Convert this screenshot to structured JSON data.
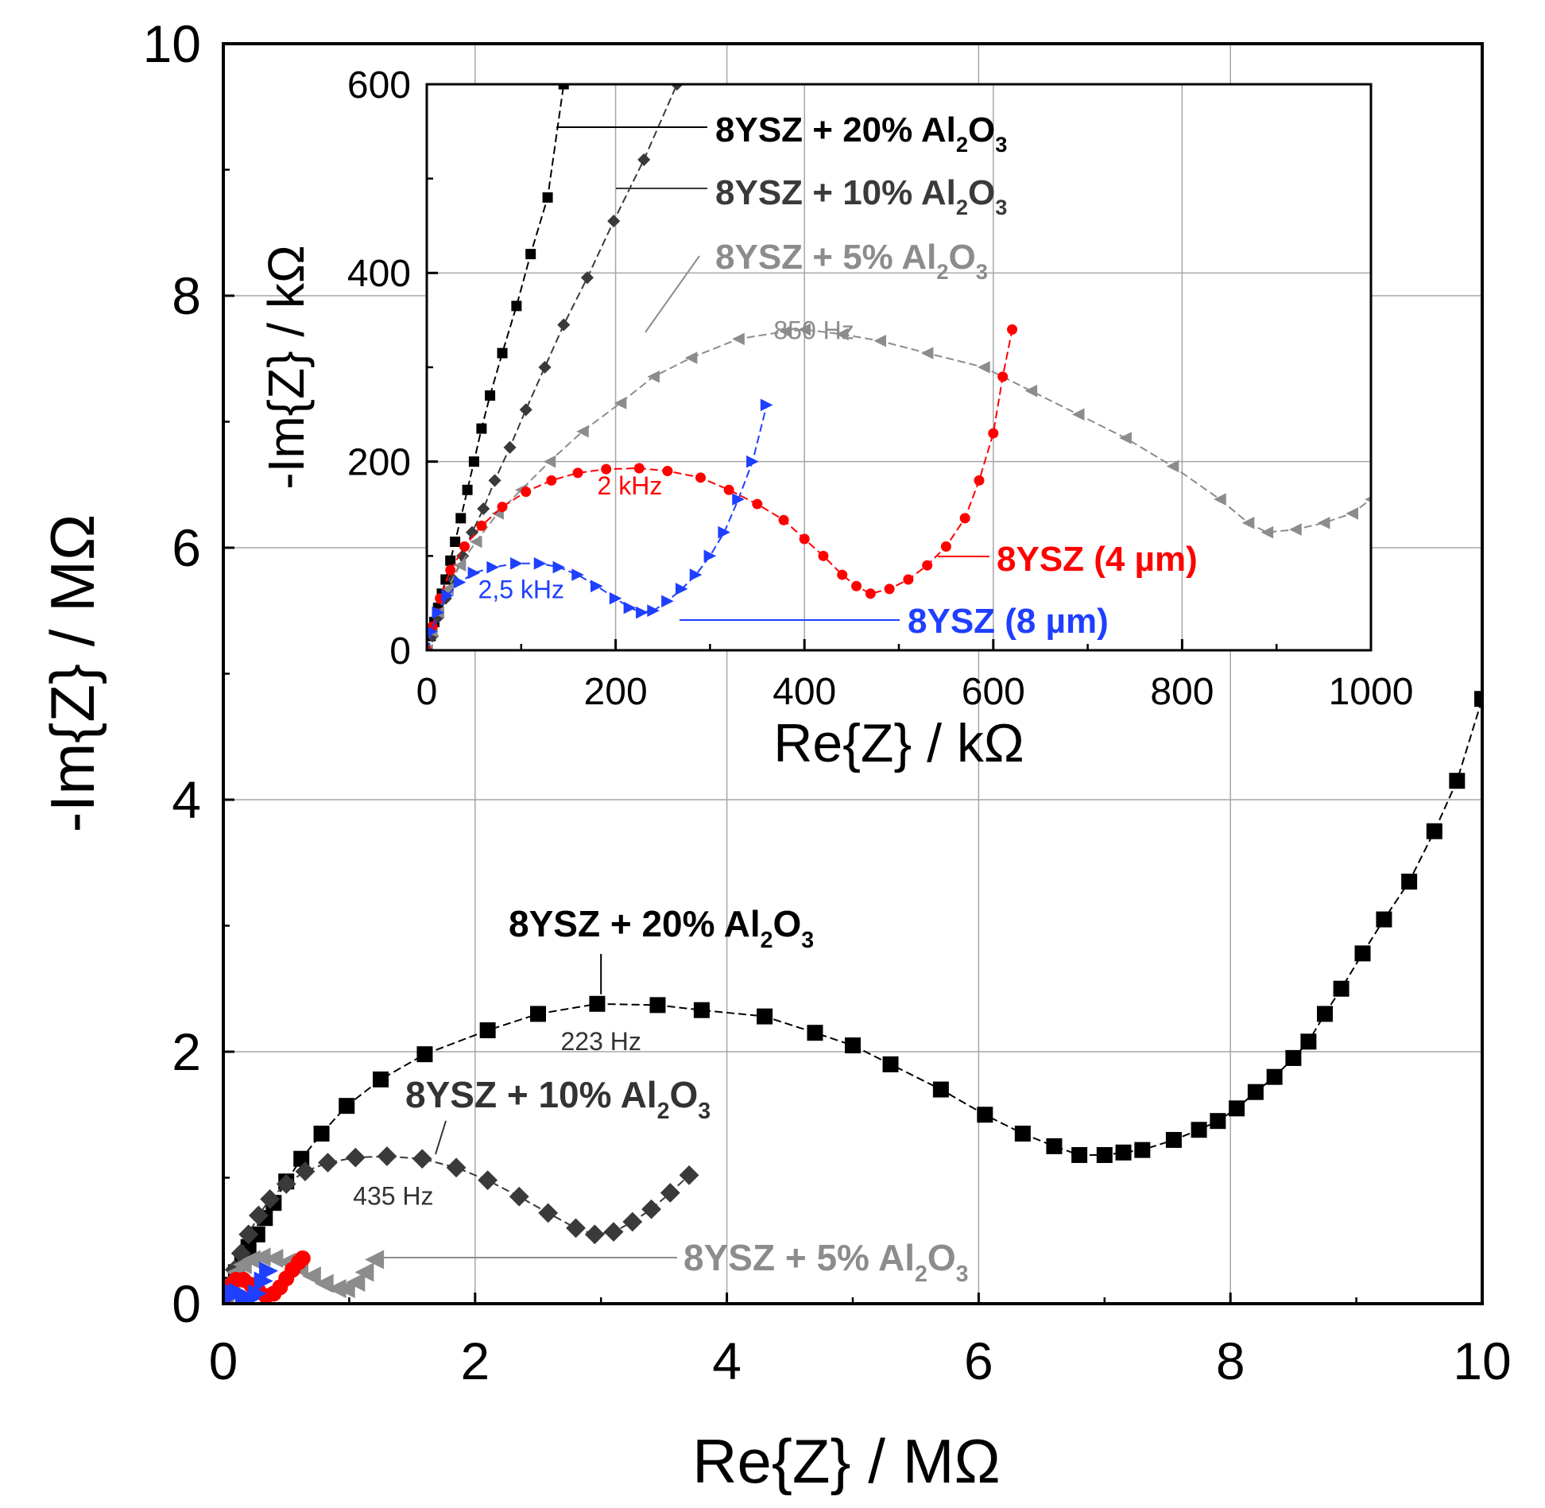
{
  "chart_data": [
    {
      "type": "line",
      "xlabel": "Re{Z} / MΩ",
      "ylabel": "-Im{Z} / MΩ",
      "xlim": [
        0,
        10
      ],
      "ylim": [
        0,
        10
      ],
      "xticks": [
        "0",
        "2",
        "4",
        "6",
        "8",
        "10"
      ],
      "yticks": [
        "0",
        "2",
        "4",
        "6",
        "8",
        "10"
      ],
      "grid": true,
      "series": [
        {
          "name": "8YSZ + 20% Al2O3",
          "color": "#000000",
          "marker": "square",
          "label_main": "8YSZ + 20% Al",
          "label_sub1": "2",
          "label_mid": "O",
          "label_sub2": "3",
          "x": [
            0.02,
            0.06,
            0.1,
            0.15,
            0.2,
            0.27,
            0.33,
            0.4,
            0.5,
            0.62,
            0.78,
            0.98,
            1.25,
            1.6,
            2.1,
            2.5,
            2.97,
            3.45,
            3.8,
            4.3,
            4.7,
            5.0,
            5.3,
            5.7,
            6.05,
            6.35,
            6.6,
            6.8,
            7.0,
            7.15,
            7.3,
            7.55,
            7.75,
            7.9,
            8.05,
            8.2,
            8.35,
            8.5,
            8.62,
            8.75,
            8.88,
            9.05,
            9.22,
            9.42,
            9.62,
            9.8,
            10.0
          ],
          "y": [
            0.05,
            0.15,
            0.25,
            0.35,
            0.45,
            0.55,
            0.68,
            0.8,
            0.97,
            1.15,
            1.35,
            1.57,
            1.78,
            1.98,
            2.17,
            2.3,
            2.38,
            2.37,
            2.33,
            2.28,
            2.15,
            2.05,
            1.9,
            1.7,
            1.5,
            1.35,
            1.25,
            1.18,
            1.18,
            1.2,
            1.22,
            1.3,
            1.38,
            1.45,
            1.55,
            1.68,
            1.8,
            1.95,
            2.08,
            2.3,
            2.5,
            2.78,
            3.05,
            3.35,
            3.75,
            4.15,
            4.8
          ]
        },
        {
          "name": "8YSZ + 10% Al2O3",
          "color": "#3a3a3a",
          "marker": "diamond",
          "label_main": "8YSZ + 10% Al",
          "label_sub1": "2",
          "label_mid": "O",
          "label_sub2": "3",
          "x": [
            0.02,
            0.05,
            0.09,
            0.14,
            0.2,
            0.28,
            0.37,
            0.5,
            0.65,
            0.83,
            1.05,
            1.3,
            1.58,
            1.85,
            2.1,
            2.35,
            2.58,
            2.8,
            2.95,
            3.1,
            3.25,
            3.4,
            3.55,
            3.7
          ],
          "y": [
            0.05,
            0.15,
            0.27,
            0.4,
            0.55,
            0.7,
            0.83,
            0.95,
            1.05,
            1.12,
            1.16,
            1.17,
            1.15,
            1.08,
            0.98,
            0.85,
            0.72,
            0.6,
            0.55,
            0.57,
            0.65,
            0.75,
            0.88,
            1.02
          ]
        },
        {
          "name": "8YSZ + 5% Al2O3",
          "color": "#8c8c8c",
          "marker": "triangle-left",
          "label_main": "8YSZ + 5% Al",
          "label_sub1": "2",
          "label_mid": "O",
          "label_sub2": "3",
          "x": [
            0.01,
            0.03,
            0.06,
            0.1,
            0.15,
            0.22,
            0.3,
            0.4,
            0.5,
            0.6,
            0.7,
            0.8,
            0.9,
            0.97,
            1.05,
            1.12,
            1.2
          ],
          "y": [
            0.03,
            0.1,
            0.18,
            0.25,
            0.31,
            0.35,
            0.37,
            0.36,
            0.33,
            0.28,
            0.22,
            0.16,
            0.12,
            0.12,
            0.17,
            0.25,
            0.35
          ]
        },
        {
          "name": "8YSZ (4 µm)",
          "color": "#ff0000",
          "marker": "circle",
          "x": [
            0.0,
            0.02,
            0.05,
            0.1,
            0.16,
            0.22,
            0.28,
            0.34,
            0.4,
            0.45,
            0.5,
            0.55,
            0.6,
            0.63
          ],
          "y": [
            0.0,
            0.08,
            0.14,
            0.19,
            0.19,
            0.15,
            0.1,
            0.06,
            0.08,
            0.13,
            0.2,
            0.27,
            0.33,
            0.36
          ]
        },
        {
          "name": "8YSZ (8 µm)",
          "color": "#1f3fff",
          "marker": "triangle-right",
          "x": [
            0.0,
            0.03,
            0.07,
            0.12,
            0.17,
            0.22,
            0.27,
            0.32,
            0.36
          ],
          "y": [
            0.0,
            0.05,
            0.09,
            0.09,
            0.06,
            0.04,
            0.08,
            0.18,
            0.26
          ]
        }
      ],
      "annotations": [
        {
          "text": "223 Hz",
          "x": 3.0,
          "y": 2.38
        },
        {
          "text": "435 Hz",
          "x": 1.35,
          "y": 1.15
        }
      ]
    },
    {
      "type": "line",
      "inset": true,
      "xlabel": "Re{Z} / kΩ",
      "ylabel": "-Im{Z} / kΩ",
      "xlim": [
        0,
        1000
      ],
      "ylim": [
        0,
        600
      ],
      "xticks": [
        "0",
        "200",
        "400",
        "600",
        "800",
        "1000"
      ],
      "yticks": [
        "0",
        "200",
        "400",
        "600"
      ],
      "grid": true,
      "series": [
        {
          "name": "8YSZ + 20% Al2O3",
          "color": "#000000",
          "marker": "square",
          "label_main": "8YSZ + 20% Al",
          "label_sub1": "2",
          "label_mid": "O",
          "label_sub2": "3",
          "x": [
            0,
            4,
            8,
            12,
            16,
            20,
            25,
            30,
            36,
            43,
            50,
            58,
            67,
            80,
            95,
            110,
            128,
            145
          ],
          "y": [
            0,
            15,
            30,
            45,
            60,
            75,
            95,
            115,
            140,
            170,
            200,
            235,
            270,
            315,
            365,
            420,
            480,
            600
          ]
        },
        {
          "name": "8YSZ + 10% Al2O3",
          "color": "#3a3a3a",
          "marker": "diamond",
          "label_main": "8YSZ + 10% Al",
          "label_sub1": "2",
          "label_mid": "O",
          "label_sub2": "3",
          "x": [
            0,
            6,
            12,
            20,
            28,
            38,
            48,
            60,
            72,
            88,
            105,
            125,
            145,
            170,
            198,
            230,
            265
          ],
          "y": [
            0,
            15,
            35,
            55,
            75,
            100,
            125,
            150,
            180,
            215,
            255,
            300,
            345,
            395,
            455,
            520,
            600
          ]
        },
        {
          "name": "8YSZ + 5% Al2O3",
          "color": "#8c8c8c",
          "marker": "triangle-left",
          "label_main": "8YSZ + 5% Al",
          "label_sub1": "2",
          "label_mid": "O",
          "label_sub2": "3",
          "x": [
            0,
            5,
            12,
            22,
            35,
            52,
            75,
            100,
            130,
            165,
            205,
            240,
            280,
            330,
            380,
            400,
            440,
            480,
            530,
            590,
            640,
            690,
            740,
            790,
            840,
            870,
            890,
            920,
            950,
            980,
            1000
          ],
          "y": [
            0,
            20,
            40,
            65,
            90,
            115,
            145,
            170,
            200,
            232,
            262,
            290,
            310,
            330,
            338,
            340,
            335,
            328,
            315,
            300,
            275,
            250,
            225,
            195,
            160,
            135,
            125,
            128,
            135,
            145,
            160
          ]
        },
        {
          "name": "8YSZ (4 µm)",
          "color": "#ff0000",
          "marker": "circle",
          "x": [
            0,
            6,
            14,
            25,
            40,
            58,
            80,
            105,
            132,
            160,
            190,
            225,
            255,
            290,
            320,
            350,
            378,
            400,
            420,
            440,
            455,
            470,
            490,
            510,
            530,
            550,
            570,
            585,
            600,
            610,
            620
          ],
          "y": [
            0,
            25,
            55,
            85,
            110,
            132,
            152,
            168,
            180,
            188,
            192,
            193,
            190,
            183,
            170,
            155,
            138,
            118,
            100,
            80,
            68,
            60,
            65,
            75,
            90,
            110,
            140,
            180,
            230,
            290,
            340
          ]
        },
        {
          "name": "8YSZ (8 µm)",
          "color": "#1f3fff",
          "marker": "triangle-right",
          "x": [
            0,
            5,
            12,
            22,
            35,
            50,
            70,
            95,
            120,
            140,
            160,
            180,
            200,
            215,
            228,
            240,
            255,
            270,
            285,
            300,
            315,
            330,
            345,
            360
          ],
          "y": [
            0,
            20,
            40,
            58,
            72,
            82,
            88,
            92,
            92,
            88,
            80,
            68,
            55,
            45,
            40,
            42,
            52,
            65,
            80,
            100,
            125,
            160,
            200,
            260
          ]
        }
      ],
      "annotations": [
        {
          "text": "850 Hz",
          "x": 410,
          "y": 330
        },
        {
          "text": "2 kHz",
          "x": 215,
          "y": 165
        },
        {
          "text": "2,5 kHz",
          "x": 100,
          "y": 55
        }
      ],
      "legend": [
        {
          "series": 0,
          "main": "8YSZ + 20% Al",
          "sub1": "2",
          "mid": "O",
          "sub2": "3",
          "color": "#000000"
        },
        {
          "series": 1,
          "main": "8YSZ + 10% Al",
          "sub1": "2",
          "mid": "O",
          "sub2": "3",
          "color": "#3a3a3a"
        },
        {
          "series": 2,
          "main": "8YSZ + 5% Al",
          "sub1": "2",
          "mid": "O",
          "sub2": "3",
          "color": "#8c8c8c"
        },
        {
          "series": 3,
          "main": "8YSZ (4 µm)",
          "color": "#ff0000"
        },
        {
          "series": 4,
          "main": "8YSZ (8 µm)",
          "color": "#1f3fff"
        }
      ]
    }
  ]
}
